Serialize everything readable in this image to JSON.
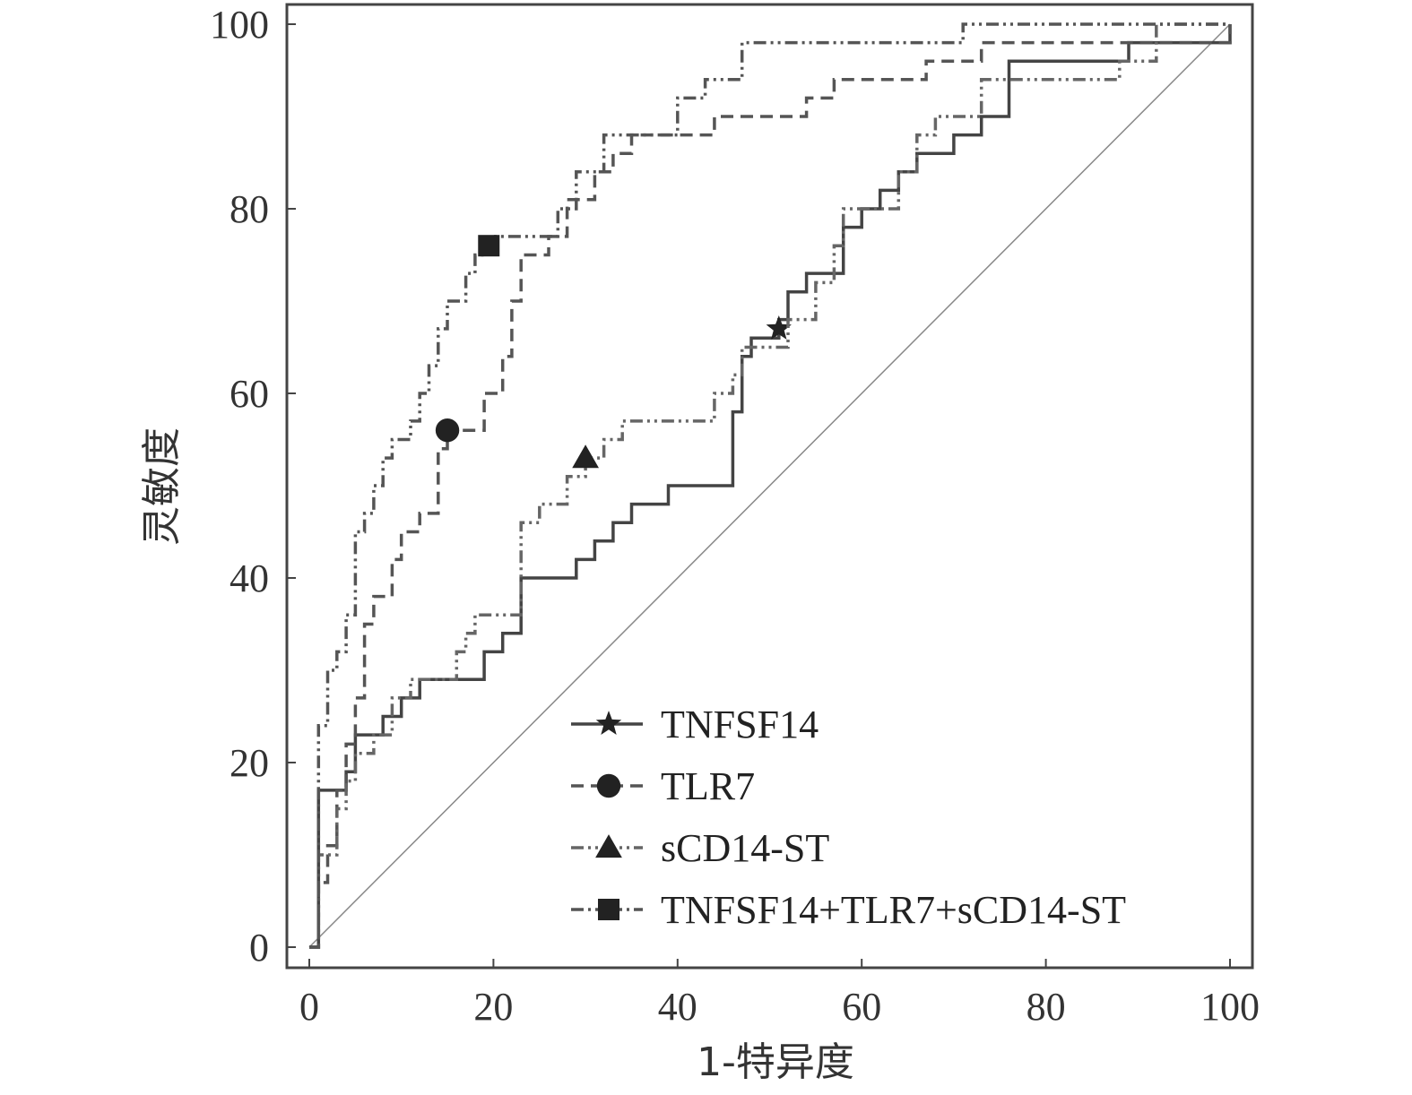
{
  "chart_data": {
    "type": "line",
    "title": "",
    "xlabel": "1-特异度",
    "ylabel": "灵敏度",
    "xlim": [
      0,
      100
    ],
    "ylim": [
      0,
      100
    ],
    "x_ticks": [
      0,
      20,
      40,
      60,
      80,
      100
    ],
    "y_ticks": [
      0,
      20,
      40,
      60,
      80,
      100
    ],
    "x_tick_labels": [
      "0",
      "20",
      "40",
      "60",
      "80",
      "100"
    ],
    "y_tick_labels": [
      "0",
      "20",
      "40",
      "60",
      "80",
      "100"
    ],
    "grid": false,
    "legend_position": "bottom-right",
    "reference_line": [
      [
        0,
        0
      ],
      [
        100,
        100
      ]
    ],
    "series": [
      {
        "name": "TNFSF14",
        "marker": "star",
        "style": "solid",
        "color": "#444444",
        "marker_point": [
          51,
          67
        ],
        "points": [
          [
            0,
            0
          ],
          [
            1,
            0
          ],
          [
            1,
            17
          ],
          [
            4,
            17
          ],
          [
            4,
            19
          ],
          [
            5,
            19
          ],
          [
            5,
            23
          ],
          [
            8,
            23
          ],
          [
            8,
            25
          ],
          [
            10,
            25
          ],
          [
            10,
            27
          ],
          [
            12,
            27
          ],
          [
            12,
            29
          ],
          [
            19,
            29
          ],
          [
            19,
            32
          ],
          [
            21,
            32
          ],
          [
            21,
            34
          ],
          [
            23,
            34
          ],
          [
            23,
            40
          ],
          [
            29,
            40
          ],
          [
            29,
            42
          ],
          [
            31,
            42
          ],
          [
            31,
            44
          ],
          [
            33,
            44
          ],
          [
            33,
            46
          ],
          [
            35,
            46
          ],
          [
            35,
            48
          ],
          [
            39,
            48
          ],
          [
            39,
            50
          ],
          [
            46,
            50
          ],
          [
            46,
            58
          ],
          [
            47,
            58
          ],
          [
            47,
            64
          ],
          [
            48,
            64
          ],
          [
            48,
            66
          ],
          [
            51,
            66
          ],
          [
            51,
            68
          ],
          [
            52,
            68
          ],
          [
            52,
            71
          ],
          [
            54,
            71
          ],
          [
            54,
            73
          ],
          [
            58,
            73
          ],
          [
            58,
            78
          ],
          [
            60,
            78
          ],
          [
            60,
            80
          ],
          [
            62,
            80
          ],
          [
            62,
            82
          ],
          [
            64,
            82
          ],
          [
            64,
            84
          ],
          [
            66,
            84
          ],
          [
            66,
            86
          ],
          [
            70,
            86
          ],
          [
            70,
            88
          ],
          [
            73,
            88
          ],
          [
            73,
            90
          ],
          [
            76,
            90
          ],
          [
            76,
            96
          ],
          [
            89,
            96
          ],
          [
            89,
            98
          ],
          [
            100,
            98
          ],
          [
            100,
            100
          ]
        ]
      },
      {
        "name": "TLR7",
        "marker": "circle",
        "style": "dashed",
        "color": "#555555",
        "marker_point": [
          15,
          56
        ],
        "points": [
          [
            0,
            0
          ],
          [
            1,
            0
          ],
          [
            1,
            7
          ],
          [
            2,
            7
          ],
          [
            2,
            11
          ],
          [
            3,
            11
          ],
          [
            3,
            17
          ],
          [
            4,
            17
          ],
          [
            4,
            22
          ],
          [
            5,
            22
          ],
          [
            5,
            27
          ],
          [
            6,
            27
          ],
          [
            6,
            35
          ],
          [
            7,
            35
          ],
          [
            7,
            38
          ],
          [
            9,
            38
          ],
          [
            9,
            42
          ],
          [
            10,
            42
          ],
          [
            10,
            45
          ],
          [
            12,
            45
          ],
          [
            12,
            47
          ],
          [
            14,
            47
          ],
          [
            14,
            54
          ],
          [
            15,
            54
          ],
          [
            15,
            56
          ],
          [
            19,
            56
          ],
          [
            19,
            60
          ],
          [
            21,
            60
          ],
          [
            21,
            64
          ],
          [
            22,
            64
          ],
          [
            22,
            70
          ],
          [
            23,
            70
          ],
          [
            23,
            75
          ],
          [
            26,
            75
          ],
          [
            26,
            77
          ],
          [
            28,
            77
          ],
          [
            28,
            81
          ],
          [
            31,
            81
          ],
          [
            31,
            84
          ],
          [
            33,
            84
          ],
          [
            33,
            86
          ],
          [
            35,
            86
          ],
          [
            35,
            88
          ],
          [
            44,
            88
          ],
          [
            44,
            90
          ],
          [
            54,
            90
          ],
          [
            54,
            92
          ],
          [
            57,
            92
          ],
          [
            57,
            94
          ],
          [
            67,
            94
          ],
          [
            67,
            96
          ],
          [
            73,
            96
          ],
          [
            73,
            98
          ],
          [
            100,
            98
          ],
          [
            100,
            100
          ]
        ]
      },
      {
        "name": "sCD14-ST",
        "marker": "triangle",
        "style": "dash-dot-dot",
        "color": "#666666",
        "marker_point": [
          30,
          53
        ],
        "points": [
          [
            0,
            0
          ],
          [
            1,
            0
          ],
          [
            1,
            10
          ],
          [
            3,
            10
          ],
          [
            3,
            15
          ],
          [
            4,
            15
          ],
          [
            4,
            18
          ],
          [
            5,
            18
          ],
          [
            5,
            21
          ],
          [
            7,
            21
          ],
          [
            7,
            23
          ],
          [
            9,
            23
          ],
          [
            9,
            27
          ],
          [
            11,
            27
          ],
          [
            11,
            29
          ],
          [
            16,
            29
          ],
          [
            16,
            32
          ],
          [
            17,
            32
          ],
          [
            17,
            34
          ],
          [
            18,
            34
          ],
          [
            18,
            36
          ],
          [
            23,
            36
          ],
          [
            23,
            46
          ],
          [
            25,
            46
          ],
          [
            25,
            48
          ],
          [
            28,
            48
          ],
          [
            28,
            51
          ],
          [
            30,
            51
          ],
          [
            30,
            53
          ],
          [
            32,
            53
          ],
          [
            32,
            55
          ],
          [
            34,
            55
          ],
          [
            34,
            57
          ],
          [
            44,
            57
          ],
          [
            44,
            60
          ],
          [
            46,
            60
          ],
          [
            46,
            62
          ],
          [
            47,
            62
          ],
          [
            47,
            65
          ],
          [
            52,
            65
          ],
          [
            52,
            68
          ],
          [
            55,
            68
          ],
          [
            55,
            72
          ],
          [
            57,
            72
          ],
          [
            57,
            76
          ],
          [
            58,
            76
          ],
          [
            58,
            80
          ],
          [
            64,
            80
          ],
          [
            64,
            84
          ],
          [
            66,
            84
          ],
          [
            66,
            88
          ],
          [
            68,
            88
          ],
          [
            68,
            90
          ],
          [
            73,
            90
          ],
          [
            73,
            94
          ],
          [
            88,
            94
          ],
          [
            88,
            96
          ],
          [
            92,
            96
          ],
          [
            92,
            100
          ],
          [
            100,
            100
          ]
        ]
      },
      {
        "name": "TNFSF14+TLR7+sCD14-ST",
        "marker": "square",
        "style": "dash-dot-dot",
        "color": "#555555",
        "marker_point": [
          19.5,
          76
        ],
        "points": [
          [
            0,
            0
          ],
          [
            1,
            0
          ],
          [
            1,
            24
          ],
          [
            2,
            24
          ],
          [
            2,
            30
          ],
          [
            3,
            30
          ],
          [
            3,
            32
          ],
          [
            4,
            32
          ],
          [
            4,
            36
          ],
          [
            5,
            36
          ],
          [
            5,
            45
          ],
          [
            6,
            45
          ],
          [
            6,
            47
          ],
          [
            7,
            47
          ],
          [
            7,
            50
          ],
          [
            8,
            50
          ],
          [
            8,
            53
          ],
          [
            9,
            53
          ],
          [
            9,
            55
          ],
          [
            11,
            55
          ],
          [
            11,
            57
          ],
          [
            12,
            57
          ],
          [
            12,
            60
          ],
          [
            13,
            60
          ],
          [
            13,
            63
          ],
          [
            14,
            63
          ],
          [
            14,
            67
          ],
          [
            15,
            67
          ],
          [
            15,
            70
          ],
          [
            17,
            70
          ],
          [
            17,
            73
          ],
          [
            18,
            73
          ],
          [
            18,
            75
          ],
          [
            19,
            75
          ],
          [
            19,
            76
          ],
          [
            20,
            76
          ],
          [
            20,
            77
          ],
          [
            27,
            77
          ],
          [
            27,
            80
          ],
          [
            29,
            80
          ],
          [
            29,
            84
          ],
          [
            32,
            84
          ],
          [
            32,
            88
          ],
          [
            40,
            88
          ],
          [
            40,
            92
          ],
          [
            43,
            92
          ],
          [
            43,
            94
          ],
          [
            47,
            94
          ],
          [
            47,
            98
          ],
          [
            71,
            98
          ],
          [
            71,
            100
          ],
          [
            100,
            100
          ]
        ]
      }
    ]
  }
}
